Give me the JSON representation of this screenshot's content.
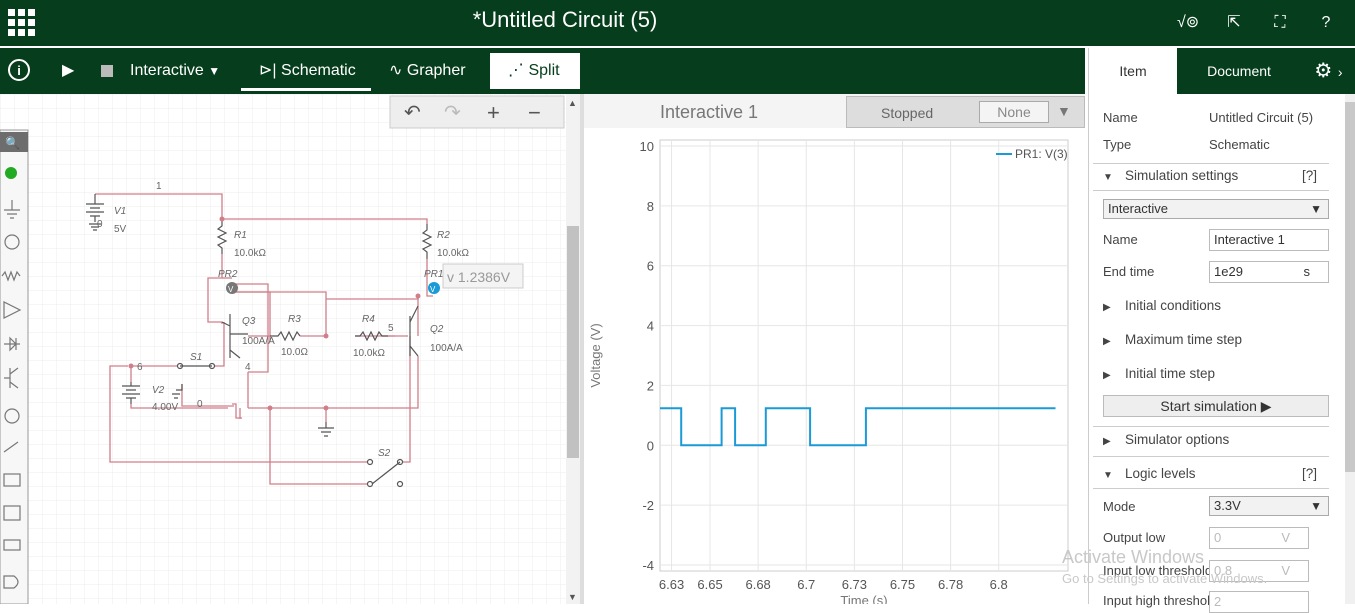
{
  "header": {
    "title": "*Untitled Circuit (5)"
  },
  "toolbar": {
    "mode": "Interactive",
    "tabs": [
      "Schematic",
      "Grapher",
      "Split"
    ]
  },
  "schematic": {
    "probe_value": "v 1.2386V",
    "labels": {
      "v1": "V1",
      "v1_val": "5V",
      "v2": "V2",
      "v2_val": "4.00V",
      "r1": "R1",
      "r1_val": "10.0kΩ",
      "r2": "R2",
      "r2_val": "10.0kΩ",
      "r3": "R3",
      "r3_val": "10.0Ω",
      "r4": "R4",
      "r4_val": "10.0kΩ",
      "q3": "Q3",
      "q3_val": "100A/A",
      "q2": "Q2",
      "q2_val": "100A/A",
      "s1": "S1",
      "s2": "S2",
      "pr2": "PR2",
      "pr1": "PR1",
      "n1": "1",
      "n0a": "0",
      "n0b": "0",
      "n4": "4",
      "n5": "5",
      "n6": "6"
    }
  },
  "grapher": {
    "title": "Interactive 1",
    "status": "Stopped",
    "cursor_select": "None",
    "ylabel": "Voltage (V)",
    "xlabel": "Time (s)",
    "legend": "PR1: V(3)"
  },
  "chart_data": {
    "type": "line",
    "xlabel": "Time (s)",
    "ylabel": "Voltage (V)",
    "xlim": [
      6.624,
      6.836
    ],
    "ylim": [
      -4.2,
      10.2
    ],
    "x_ticks": [
      "6.63",
      "6.65",
      "6.68",
      "6.7",
      "6.73",
      "6.75",
      "6.78",
      "6.8"
    ],
    "x_tick_values": [
      6.63,
      6.65,
      6.675,
      6.7,
      6.725,
      6.75,
      6.775,
      6.8
    ],
    "y_ticks": [
      -4,
      -2,
      0,
      2,
      4,
      6,
      8,
      10
    ],
    "series": [
      {
        "name": "PR1: V(3)",
        "color": "#1a9ad6",
        "x": [
          6.624,
          6.635,
          6.635,
          6.656,
          6.656,
          6.663,
          6.663,
          6.679,
          6.679,
          6.702,
          6.702,
          6.731,
          6.731,
          6.8295
        ],
        "y": [
          1.24,
          1.24,
          0.0,
          0.0,
          1.24,
          1.24,
          0.0,
          0.0,
          1.24,
          1.24,
          0.0,
          0.0,
          1.24,
          1.24
        ]
      }
    ],
    "grid": true,
    "legend_position": "top-right"
  },
  "panel": {
    "tabs": {
      "item": "Item",
      "document": "Document"
    },
    "name_label": "Name",
    "name_value": "Untitled Circuit (5)",
    "type_label": "Type",
    "type_value": "Schematic",
    "sim_settings": "Simulation settings",
    "help": "[?]",
    "sim_mode": "Interactive",
    "sim_name_label": "Name",
    "sim_name_value": "Interactive 1",
    "end_time_label": "End time",
    "end_time_value": "1e29",
    "end_time_unit": "s",
    "initial_conditions": "Initial conditions",
    "max_time_step": "Maximum time step",
    "initial_time_step": "Initial time step",
    "start_sim": "Start simulation ▶",
    "simulator_options": "Simulator options",
    "logic_levels": "Logic levels",
    "mode_label": "Mode",
    "mode_value": "3.3V",
    "output_low_label": "Output low",
    "output_low_value": "0",
    "unit_v": "V",
    "input_low_label": "Input low threshold",
    "input_low_value": "0.8",
    "input_high_label": "Input high threshold",
    "input_high_value": "2"
  },
  "watermark": {
    "line1": "Activate Windows",
    "line2": "Go to Settings to activate Windows."
  }
}
